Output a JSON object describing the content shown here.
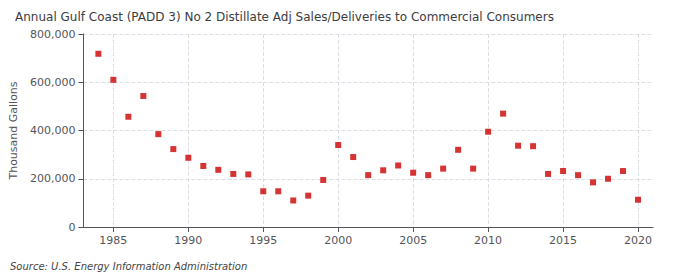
{
  "chart_data": {
    "type": "scatter",
    "title": "Annual Gulf Coast (PADD 3) No 2 Distillate Adj Sales/Deliveries to Commercial Consumers",
    "ylabel": "Thousand Gallons",
    "annotations": [
      "Source: U.S. Energy Information Administration"
    ],
    "x": [
      1984,
      1985,
      1986,
      1987,
      1988,
      1989,
      1990,
      1991,
      1992,
      1993,
      1994,
      1995,
      1996,
      1997,
      1998,
      1999,
      2000,
      2001,
      2002,
      2003,
      2004,
      2005,
      2006,
      2007,
      2008,
      2009,
      2010,
      2011,
      2012,
      2013,
      2014,
      2015,
      2016,
      2017,
      2018,
      2019,
      2020
    ],
    "values": [
      718000,
      610000,
      457000,
      543000,
      385000,
      323000,
      287000,
      253000,
      237000,
      220000,
      218000,
      148000,
      148000,
      110000,
      130000,
      195000,
      340000,
      290000,
      215000,
      235000,
      255000,
      225000,
      215000,
      242000,
      320000,
      242000,
      395000,
      470000,
      337000,
      335000,
      220000,
      232000,
      215000,
      185000,
      200000,
      232000,
      113000
    ],
    "color": "#cc0000",
    "marker": "square",
    "xlim": [
      1983,
      2021
    ],
    "xticks": [
      1985,
      1990,
      1995,
      2000,
      2005,
      2010,
      2015,
      2020
    ],
    "ylim": [
      0,
      800000
    ],
    "yticks": [
      0,
      {
        "value": 200000,
        "label": "200,000"
      },
      {
        "value": 400000,
        "label": "400,000"
      },
      {
        "value": 600000,
        "label": "600,000"
      },
      {
        "value": 800000,
        "label": "800,000"
      }
    ],
    "grid": true
  }
}
